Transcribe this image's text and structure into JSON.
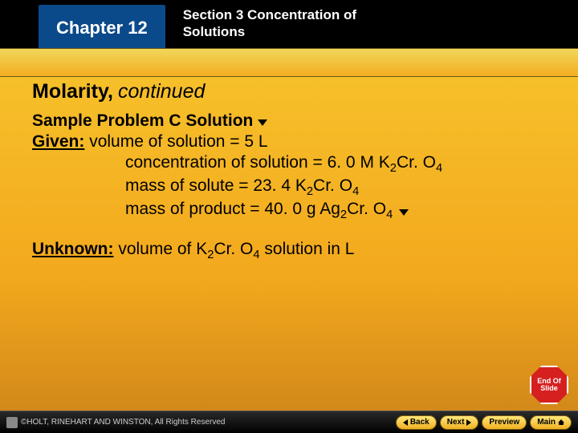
{
  "header": {
    "chapter": "Chapter 12",
    "section": "Section 3  Concentration of Solutions"
  },
  "title": {
    "main": "Molarity,",
    "continued": "continued"
  },
  "subtitle": "Sample Problem C Solution",
  "given": {
    "label": "Given:",
    "lines": {
      "l1_prefix": " volume of solution = 5 L",
      "l2_text": "concentration of solution = 6. 0 M K",
      "l2_formula_tail": "Cr. O",
      "l3_text": "mass of solute = 23. 4 K",
      "l3_formula_tail": "Cr. O",
      "l4_text": "mass of product = 40. 0 g Ag",
      "l4_formula_tail": "Cr. O"
    }
  },
  "unknown": {
    "label": "Unknown:",
    "text_pre": " volume of K",
    "formula_tail": "Cr. O",
    "text_post": " solution in L"
  },
  "stop": "End\nOf\nSlide",
  "footer": {
    "copyright": "©HOLT, RINEHART AND WINSTON, All Rights Reserved",
    "back": "Back",
    "next": "Next",
    "preview": "Preview",
    "main": "Main"
  },
  "colors": {
    "chapter_bg": "#0b4a8a",
    "gold_top": "#f2d65a",
    "gold_bottom": "#f3ae21",
    "content_grad_from": "#f6c02a",
    "content_grad_to": "#d3891a",
    "stop": "#d62020"
  }
}
